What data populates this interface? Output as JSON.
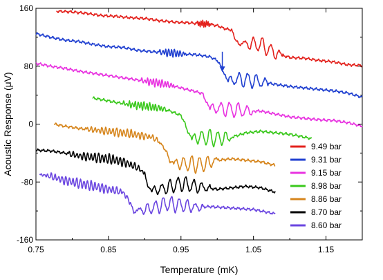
{
  "chart_data": {
    "type": "line",
    "title": "",
    "xlabel": "Temperature (mK)",
    "ylabel": "Acoustic Response (μV)",
    "xlim": [
      0.75,
      1.2
    ],
    "ylim": [
      -160,
      160
    ],
    "x_ticks": [
      0.75,
      0.85,
      0.95,
      1.05,
      1.15
    ],
    "x_tick_labels": [
      "0.75",
      "0.85",
      "0.95",
      "1.05",
      "1.15"
    ],
    "y_ticks": [
      -160,
      -80,
      0,
      80,
      160
    ],
    "y_tick_labels": [
      "-160",
      "-80",
      "0",
      "80",
      "160"
    ],
    "grid": false,
    "legend_position": "bottom-right",
    "annotations": [
      {
        "type": "arrow",
        "x": 1.007,
        "y_from": 100,
        "y_to": 72,
        "color": "#1f3fd0"
      }
    ],
    "series": [
      {
        "name": "9.49 bar",
        "color": "#e3211c",
        "points": [
          [
            0.778,
            156
          ],
          [
            0.8,
            155
          ],
          [
            0.82,
            153
          ],
          [
            0.84,
            150
          ],
          [
            0.86,
            149
          ],
          [
            0.88,
            147
          ],
          [
            0.9,
            146
          ],
          [
            0.92,
            143
          ],
          [
            0.94,
            141
          ],
          [
            0.96,
            140
          ],
          [
            0.975,
            139
          ],
          [
            0.99,
            138
          ],
          [
            1.0,
            136
          ],
          [
            1.01,
            132
          ],
          [
            1.02,
            130
          ],
          [
            1.025,
            117
          ],
          [
            1.03,
            110
          ],
          [
            1.04,
            111
          ],
          [
            1.06,
            110
          ],
          [
            1.08,
            98
          ],
          [
            1.1,
            92
          ],
          [
            1.12,
            91
          ],
          [
            1.14,
            88
          ],
          [
            1.16,
            86
          ],
          [
            1.18,
            82
          ],
          [
            1.2,
            81
          ]
        ],
        "wiggles": [
          {
            "x0": 0.972,
            "x1": 0.99,
            "amp": 5,
            "period": 0.0025
          },
          {
            "x0": 1.035,
            "x1": 1.09,
            "amp": 10,
            "period": 0.012
          }
        ]
      },
      {
        "name": "9.31 bar",
        "color": "#1f3fd0",
        "points": [
          [
            0.75,
            125
          ],
          [
            0.77,
            120
          ],
          [
            0.79,
            116
          ],
          [
            0.81,
            114
          ],
          [
            0.83,
            110
          ],
          [
            0.85,
            107
          ],
          [
            0.87,
            106
          ],
          [
            0.89,
            102
          ],
          [
            0.91,
            100
          ],
          [
            0.93,
            99
          ],
          [
            0.95,
            97
          ],
          [
            0.97,
            96
          ],
          [
            0.99,
            93
          ],
          [
            1.0,
            88
          ],
          [
            1.005,
            80
          ],
          [
            1.01,
            68
          ],
          [
            1.015,
            60
          ],
          [
            1.03,
            62
          ],
          [
            1.05,
            60
          ],
          [
            1.08,
            55
          ],
          [
            1.1,
            52
          ],
          [
            1.12,
            50
          ],
          [
            1.14,
            48
          ],
          [
            1.16,
            46
          ],
          [
            1.18,
            43
          ],
          [
            1.2,
            37
          ]
        ],
        "wiggles": [
          {
            "x0": 0.92,
            "x1": 0.955,
            "amp": 5,
            "period": 0.004
          },
          {
            "x0": 1.015,
            "x1": 1.07,
            "amp": 10,
            "period": 0.012
          }
        ]
      },
      {
        "name": "9.15 bar",
        "color": "#e832e0",
        "points": [
          [
            0.75,
            84
          ],
          [
            0.77,
            80
          ],
          [
            0.79,
            77
          ],
          [
            0.81,
            73
          ],
          [
            0.83,
            70
          ],
          [
            0.85,
            67
          ],
          [
            0.87,
            64
          ],
          [
            0.89,
            61
          ],
          [
            0.91,
            58
          ],
          [
            0.93,
            55
          ],
          [
            0.95,
            50
          ],
          [
            0.97,
            45
          ],
          [
            0.98,
            42
          ],
          [
            0.985,
            30
          ],
          [
            0.99,
            22
          ],
          [
            1.0,
            22
          ],
          [
            1.02,
            20
          ],
          [
            1.04,
            18
          ],
          [
            1.06,
            18
          ],
          [
            1.08,
            14
          ],
          [
            1.1,
            10
          ],
          [
            1.12,
            8
          ],
          [
            1.14,
            6
          ],
          [
            1.16,
            5
          ],
          [
            1.18,
            2
          ],
          [
            1.2,
            -3
          ]
        ],
        "wiggles": [
          {
            "x0": 0.895,
            "x1": 0.94,
            "amp": 5,
            "period": 0.004
          },
          {
            "x0": 0.99,
            "x1": 1.05,
            "amp": 10,
            "period": 0.012
          }
        ]
      },
      {
        "name": "8.98 bar",
        "color": "#3ac81c",
        "points": [
          [
            0.828,
            36
          ],
          [
            0.84,
            34
          ],
          [
            0.86,
            30
          ],
          [
            0.88,
            27
          ],
          [
            0.9,
            25
          ],
          [
            0.92,
            22
          ],
          [
            0.93,
            20
          ],
          [
            0.94,
            16
          ],
          [
            0.95,
            12
          ],
          [
            0.955,
            2
          ],
          [
            0.96,
            -12
          ],
          [
            0.965,
            -20
          ],
          [
            0.98,
            -18
          ],
          [
            1.0,
            -20
          ],
          [
            1.02,
            -18
          ],
          [
            1.04,
            -12
          ],
          [
            1.06,
            -10
          ],
          [
            1.08,
            -12
          ],
          [
            1.1,
            -14
          ],
          [
            1.12,
            -18
          ],
          [
            1.13,
            -20
          ]
        ],
        "wiggles": [
          {
            "x0": 0.87,
            "x1": 0.93,
            "amp": 5,
            "period": 0.004
          },
          {
            "x0": 0.965,
            "x1": 1.02,
            "amp": 11,
            "period": 0.011
          }
        ]
      },
      {
        "name": "8.86 bar",
        "color": "#d6851c",
        "points": [
          [
            0.775,
            0
          ],
          [
            0.79,
            -3
          ],
          [
            0.81,
            -6
          ],
          [
            0.83,
            -8
          ],
          [
            0.85,
            -10
          ],
          [
            0.87,
            -12
          ],
          [
            0.89,
            -15
          ],
          [
            0.91,
            -18
          ],
          [
            0.92,
            -24
          ],
          [
            0.93,
            -38
          ],
          [
            0.935,
            -52
          ],
          [
            0.94,
            -54
          ],
          [
            0.96,
            -55
          ],
          [
            0.98,
            -56
          ],
          [
            1.0,
            -50
          ],
          [
            1.02,
            -48
          ],
          [
            1.04,
            -50
          ],
          [
            1.06,
            -52
          ],
          [
            1.08,
            -57
          ]
        ],
        "wiggles": [
          {
            "x0": 0.82,
            "x1": 0.92,
            "amp": 5,
            "period": 0.005
          },
          {
            "x0": 0.94,
            "x1": 1.0,
            "amp": 11,
            "period": 0.011
          }
        ]
      },
      {
        "name": "8.70 bar",
        "color": "#000000",
        "points": [
          [
            0.75,
            -36
          ],
          [
            0.77,
            -37
          ],
          [
            0.79,
            -40
          ],
          [
            0.81,
            -44
          ],
          [
            0.83,
            -46
          ],
          [
            0.85,
            -48
          ],
          [
            0.87,
            -52
          ],
          [
            0.89,
            -60
          ],
          [
            0.9,
            -68
          ],
          [
            0.905,
            -88
          ],
          [
            0.91,
            -92
          ],
          [
            0.93,
            -88
          ],
          [
            0.95,
            -82
          ],
          [
            0.97,
            -86
          ],
          [
            1.0,
            -90
          ],
          [
            1.02,
            -88
          ],
          [
            1.04,
            -86
          ],
          [
            1.06,
            -88
          ],
          [
            1.08,
            -94
          ]
        ],
        "wiggles": [
          {
            "x0": 0.795,
            "x1": 0.9,
            "amp": 6,
            "period": 0.005
          },
          {
            "x0": 0.91,
            "x1": 0.99,
            "amp": 10,
            "period": 0.011
          }
        ]
      },
      {
        "name": "8.60 bar",
        "color": "#6a45e0",
        "points": [
          [
            0.755,
            -70
          ],
          [
            0.77,
            -72
          ],
          [
            0.79,
            -78
          ],
          [
            0.81,
            -82
          ],
          [
            0.83,
            -86
          ],
          [
            0.85,
            -90
          ],
          [
            0.87,
            -94
          ],
          [
            0.88,
            -108
          ],
          [
            0.885,
            -122
          ],
          [
            0.89,
            -120
          ],
          [
            0.91,
            -116
          ],
          [
            0.93,
            -110
          ],
          [
            0.95,
            -112
          ],
          [
            0.97,
            -115
          ],
          [
            0.99,
            -114
          ],
          [
            1.02,
            -116
          ],
          [
            1.05,
            -118
          ],
          [
            1.08,
            -124
          ]
        ],
        "wiggles": [
          {
            "x0": 0.76,
            "x1": 0.88,
            "amp": 6,
            "period": 0.005
          },
          {
            "x0": 0.89,
            "x1": 0.98,
            "amp": 10,
            "period": 0.011
          }
        ]
      }
    ]
  }
}
